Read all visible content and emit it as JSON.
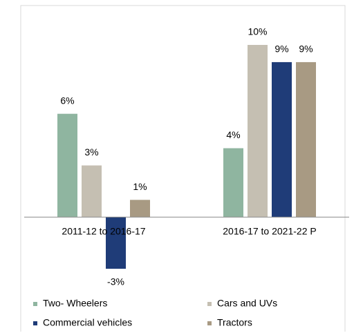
{
  "chart_data": {
    "type": "bar",
    "categories": [
      "2011-12 to 2016-17",
      "2016-17 to 2021-22 P"
    ],
    "series": [
      {
        "name": "Two- Wheelers",
        "color": "#8fb5a0",
        "values": [
          6,
          4
        ],
        "value_labels": [
          "6%",
          "4%"
        ]
      },
      {
        "name": "Cars and UVs",
        "color": "#c5bfb2",
        "values": [
          3,
          10
        ],
        "value_labels": [
          "3%",
          "10%"
        ]
      },
      {
        "name": "Commercial vehicles",
        "color": "#1f3c78",
        "values": [
          -3,
          9
        ],
        "value_labels": [
          "-3%",
          "9%"
        ]
      },
      {
        "name": "Tractors",
        "color": "#a89a83",
        "values": [
          1,
          9
        ],
        "value_labels": [
          "1%",
          "9%"
        ]
      }
    ],
    "ylim": [
      -3,
      10
    ]
  }
}
